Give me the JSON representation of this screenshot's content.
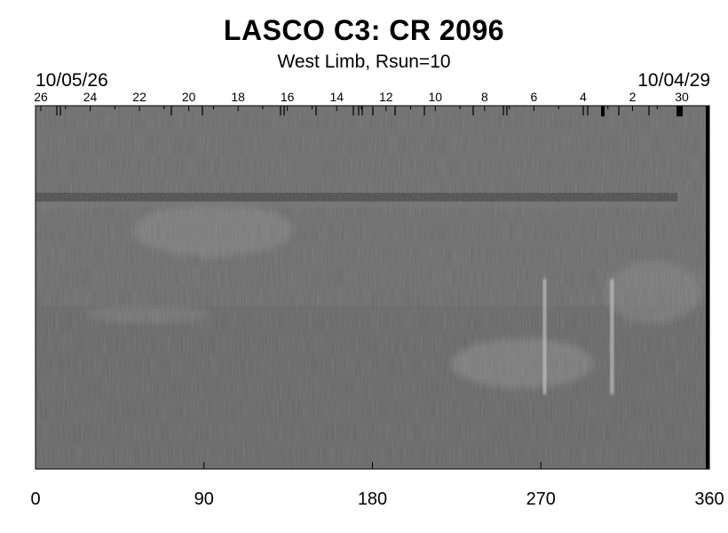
{
  "chart_data": {
    "type": "heatmap",
    "title": "LASCO C3: CR 2096",
    "subtitle": "West Limb, Rsun=10",
    "date_start": "10/05/26",
    "date_end": "10/04/29",
    "xlim": [
      0,
      360
    ],
    "x_ticks": [
      "0",
      "90",
      "180",
      "270",
      "360"
    ],
    "day_labels": [
      "26",
      "24",
      "22",
      "20",
      "18",
      "16",
      "14",
      "12",
      "10",
      "8",
      "6",
      "4",
      "2",
      "30"
    ],
    "colormap": "grayscale",
    "background_gray": "#666666",
    "features": [
      {
        "name": "bright-band",
        "lon_start": 0,
        "lon_end": 343
      },
      {
        "name": "streamer",
        "lon": 272
      },
      {
        "name": "streamer",
        "lon": 308
      }
    ]
  }
}
